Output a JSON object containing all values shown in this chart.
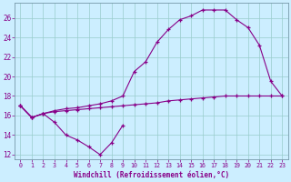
{
  "xlabel": "Windchill (Refroidissement éolien,°C)",
  "background_color": "#cceeff",
  "line_color": "#880088",
  "grid_color": "#99cccc",
  "ylim": [
    11.5,
    27.5
  ],
  "xlim": [
    -0.5,
    23.5
  ],
  "yticks": [
    12,
    14,
    16,
    18,
    20,
    22,
    24,
    26
  ],
  "xticks": [
    0,
    1,
    2,
    3,
    4,
    5,
    6,
    7,
    8,
    9,
    10,
    11,
    12,
    13,
    14,
    15,
    16,
    17,
    18,
    19,
    20,
    21,
    22,
    23
  ],
  "line_bottom_x": [
    0,
    1,
    2,
    3,
    4,
    5,
    6,
    7,
    8,
    9
  ],
  "line_bottom_y": [
    17.0,
    15.8,
    16.2,
    15.3,
    14.0,
    13.5,
    12.8,
    12.0,
    13.2,
    15.0
  ],
  "line_flat_x": [
    0,
    1,
    2,
    3,
    4,
    5,
    6,
    7,
    8,
    9,
    10,
    11,
    12,
    13,
    14,
    15,
    16,
    17,
    18,
    19,
    20,
    21,
    22,
    23
  ],
  "line_flat_y": [
    17.0,
    15.8,
    16.2,
    16.4,
    16.5,
    16.6,
    16.7,
    16.8,
    16.9,
    17.0,
    17.1,
    17.2,
    17.3,
    17.5,
    17.6,
    17.7,
    17.8,
    17.9,
    18.0,
    18.0,
    18.0,
    18.0,
    18.0,
    18.0
  ],
  "line_upper_x": [
    0,
    1,
    2,
    3,
    4,
    5,
    6,
    7,
    8,
    9,
    10,
    11,
    12,
    13,
    14,
    15,
    16,
    17,
    18,
    19,
    20,
    21,
    22,
    23
  ],
  "line_upper_y": [
    17.0,
    15.8,
    16.2,
    16.5,
    16.7,
    16.8,
    17.0,
    17.2,
    17.5,
    18.0,
    20.5,
    21.5,
    23.5,
    24.8,
    25.8,
    26.2,
    26.8,
    26.8,
    26.8,
    25.8,
    25.0,
    23.2,
    19.5,
    18.0
  ]
}
